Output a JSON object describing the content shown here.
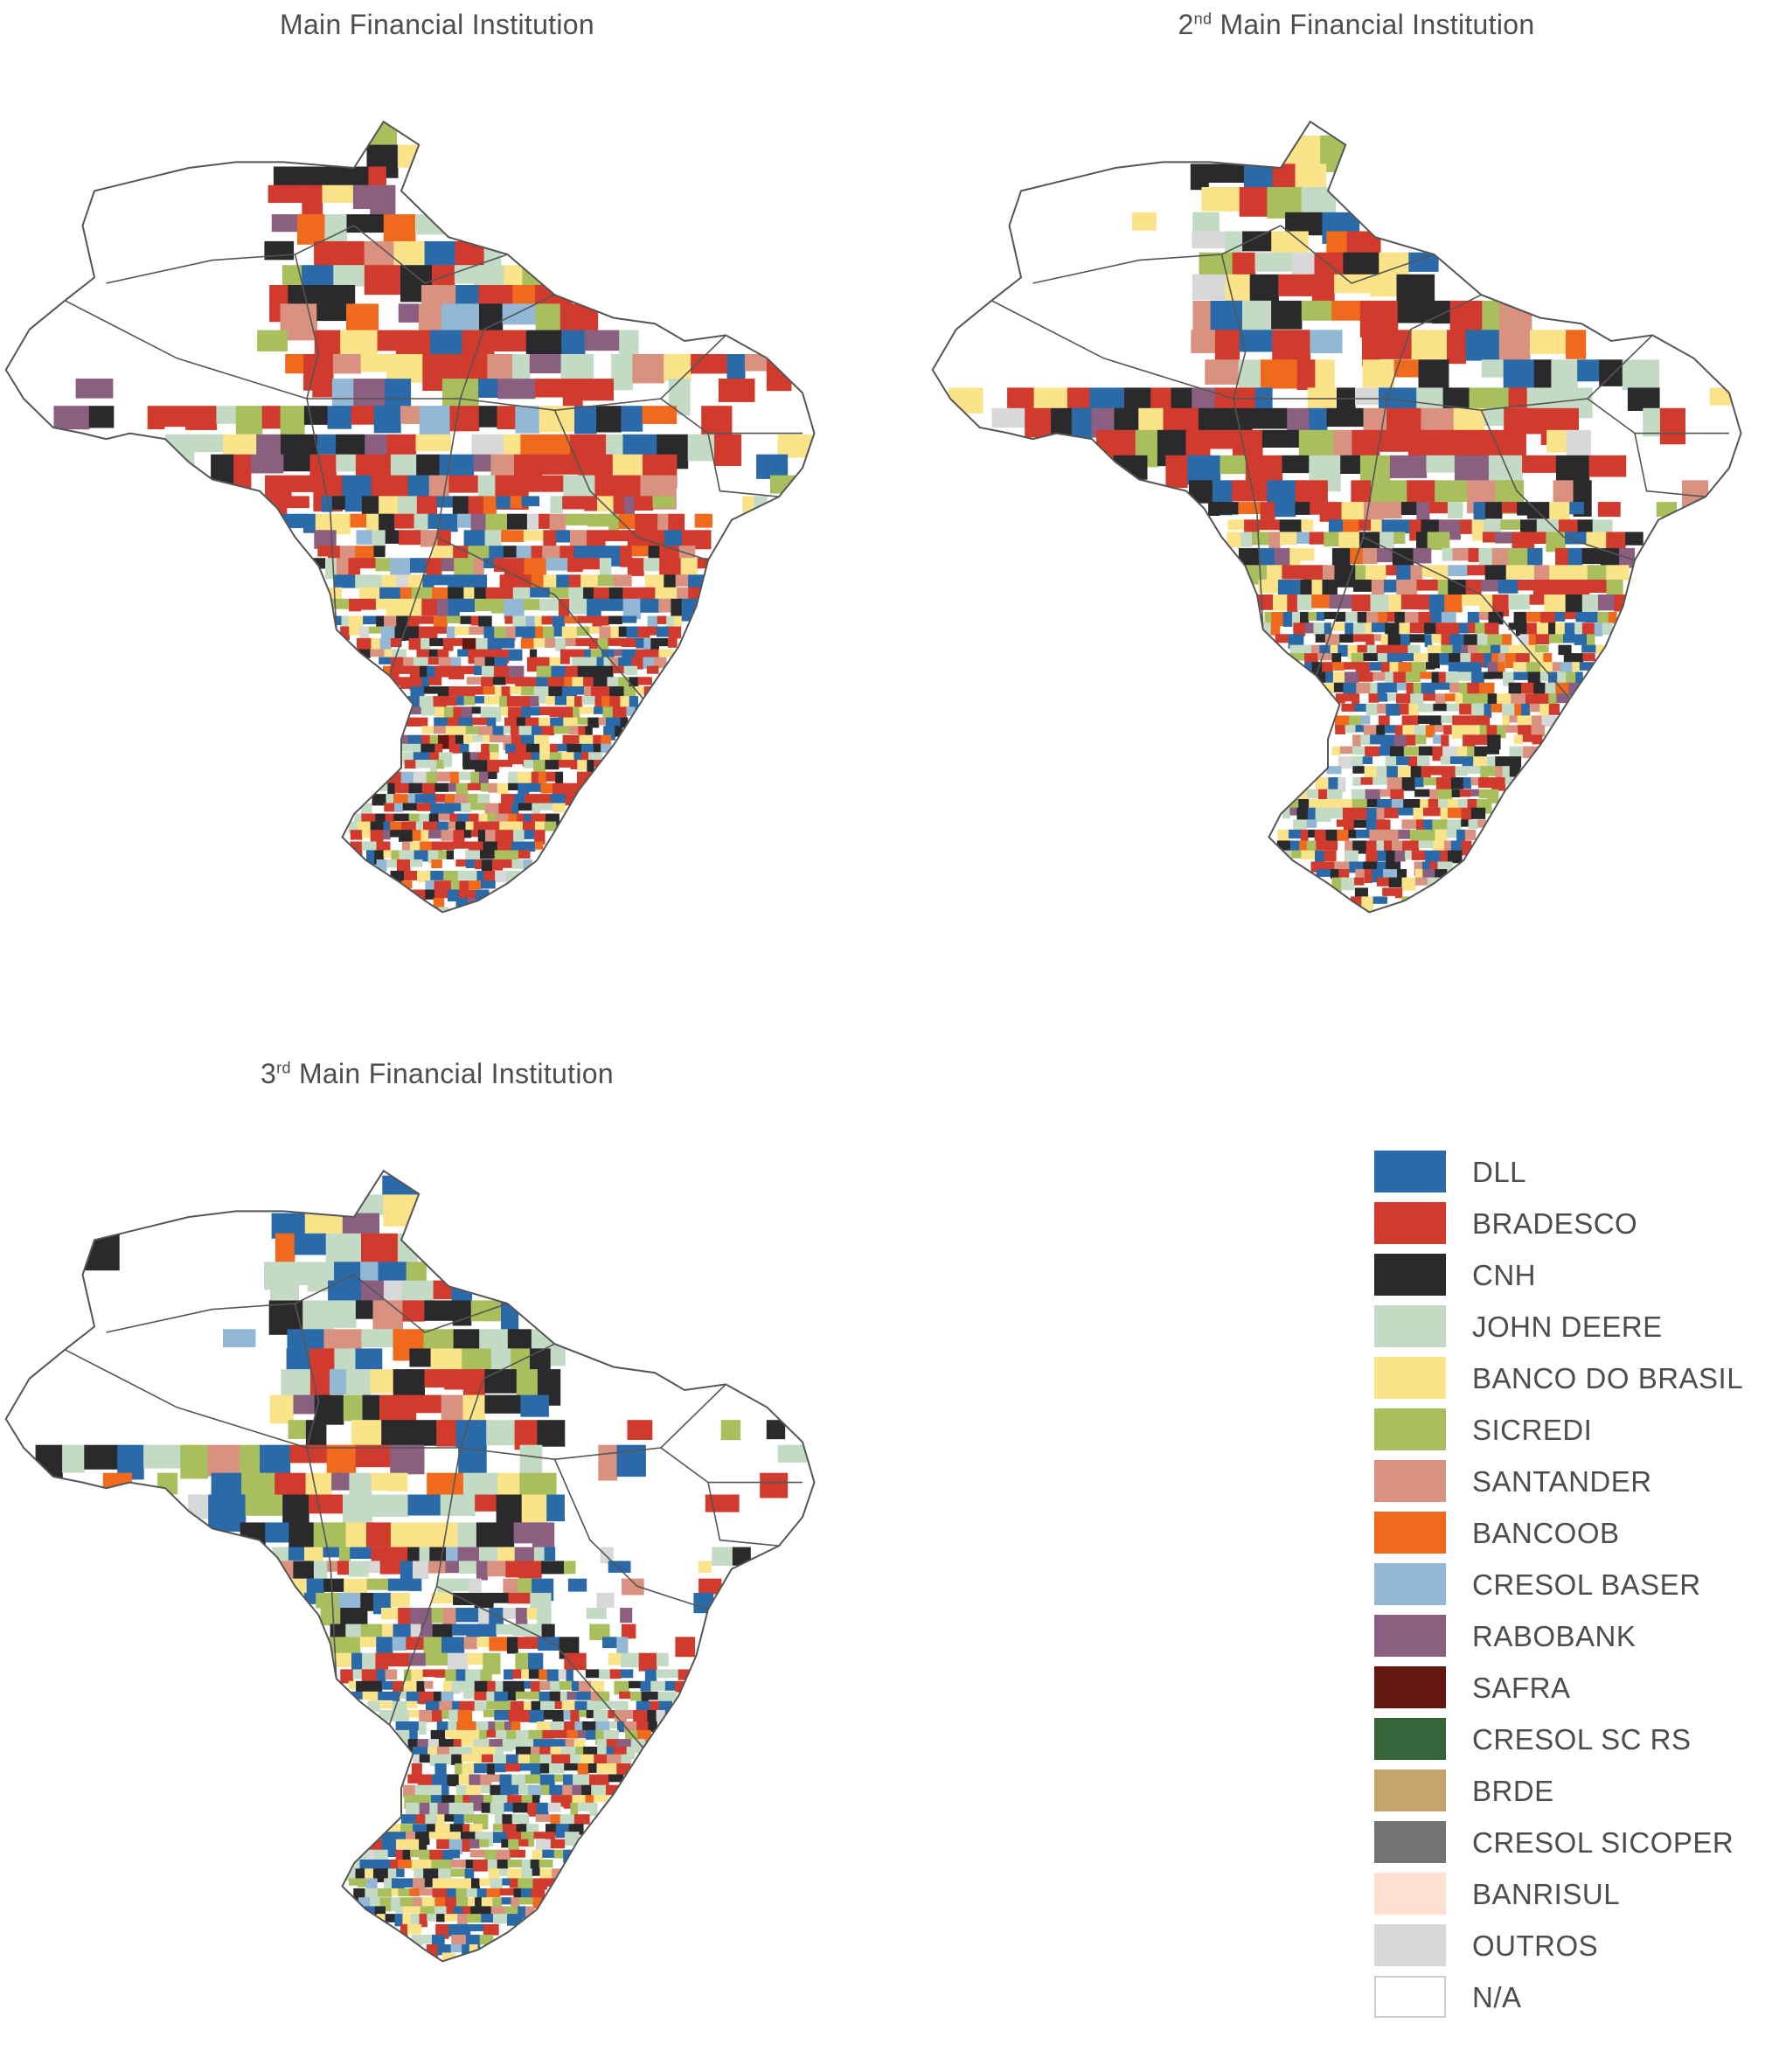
{
  "panels": [
    {
      "id": "main",
      "title": "Main Financial Institution",
      "title_sup": ""
    },
    {
      "id": "second",
      "title_prefix": "2",
      "title_sup": "nd",
      "title": " Main Financial Institution"
    },
    {
      "id": "third",
      "title_prefix": "3",
      "title_sup": "rd",
      "title": " Main Financial Institution"
    }
  ],
  "legend": [
    {
      "label": "DLL",
      "color": "#2a6aa8"
    },
    {
      "label": "BRADESCO",
      "color": "#d13b2e"
    },
    {
      "label": "CNH",
      "color": "#2a2a2c"
    },
    {
      "label": "JOHN DEERE",
      "color": "#c3dbc4"
    },
    {
      "label": "BANCO DO BRASIL",
      "color": "#fbe38a"
    },
    {
      "label": "SICREDI",
      "color": "#a9be5c"
    },
    {
      "label": "SANTANDER",
      "color": "#d8927f"
    },
    {
      "label": "BANCOOB",
      "color": "#ef6a1d"
    },
    {
      "label": "CRESOL BASER",
      "color": "#93b8d6"
    },
    {
      "label": "RABOBANK",
      "color": "#8a5f80"
    },
    {
      "label": "SAFRA",
      "color": "#661611"
    },
    {
      "label": "CRESOL SC RS",
      "color": "#356538"
    },
    {
      "label": "BRDE",
      "color": "#c3a46a"
    },
    {
      "label": "CRESOL SICOPER",
      "color": "#737373"
    },
    {
      "label": "BANRISUL",
      "color": "#fde0cf"
    },
    {
      "label": "OUTROS",
      "color": "#d8d8d8"
    },
    {
      "label": "N/A",
      "color": "#ffffff"
    }
  ],
  "map_style": {
    "border_color": "#555555",
    "land_color": "#ffffff"
  }
}
